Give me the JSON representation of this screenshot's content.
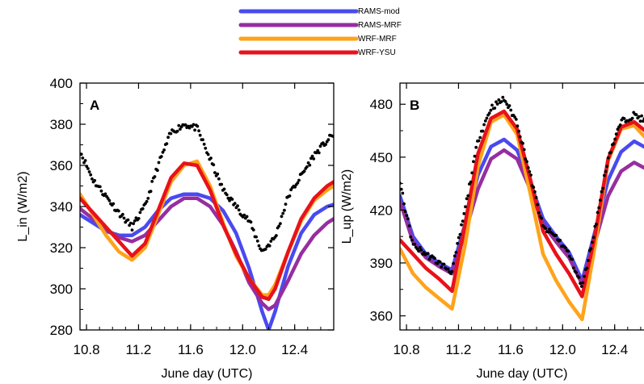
{
  "legend": [
    {
      "name": "RAMS-mod",
      "color": "#4a4af0"
    },
    {
      "name": "RAMS-MRF",
      "color": "#962ea0"
    },
    {
      "name": "WRF-MRF",
      "color": "#ffa31a"
    },
    {
      "name": "WRF-YSU",
      "color": "#e8121a"
    }
  ],
  "chart_data": [
    {
      "type": "line",
      "panel_label": "A",
      "xlabel": "June day (UTC)",
      "ylabel": "L_in (W/m2)",
      "xlim": [
        10.75,
        12.7
      ],
      "ylim": [
        280,
        400
      ],
      "xticks": [
        10.8,
        11.2,
        11.6,
        12.0,
        12.4
      ],
      "xtick_labels": [
        "10.8",
        "11.2",
        "11.6",
        "12.0",
        "12.4"
      ],
      "yticks": [
        280,
        300,
        320,
        340,
        360,
        380,
        400
      ],
      "ytick_labels": [
        "280",
        "300",
        "320",
        "340",
        "360",
        "380",
        "400"
      ],
      "observed": {
        "style": "black dots",
        "x": [
          10.75,
          10.85,
          10.95,
          11.05,
          11.15,
          11.25,
          11.35,
          11.45,
          11.55,
          11.65,
          11.75,
          11.85,
          11.95,
          12.05,
          12.15,
          12.25,
          12.35,
          12.45,
          12.55,
          12.65,
          12.7
        ],
        "y": [
          367,
          353,
          345,
          337,
          330,
          340,
          360,
          376,
          380,
          378,
          363,
          348,
          340,
          333,
          318,
          325,
          345,
          355,
          365,
          372,
          375
        ]
      },
      "series": [
        {
          "name": "RAMS-mod",
          "x": [
            10.75,
            10.85,
            10.95,
            11.05,
            11.15,
            11.25,
            11.35,
            11.45,
            11.55,
            11.65,
            11.75,
            11.85,
            11.95,
            12.05,
            12.15,
            12.2,
            12.25,
            12.35,
            12.45,
            12.55,
            12.65,
            12.7
          ],
          "y": [
            336,
            332,
            328,
            326,
            326,
            330,
            338,
            344,
            346,
            346,
            344,
            338,
            327,
            310,
            289,
            280,
            289,
            311,
            327,
            336,
            340,
            341
          ]
        },
        {
          "name": "RAMS-MRF",
          "x": [
            10.75,
            10.85,
            10.95,
            11.05,
            11.15,
            11.25,
            11.35,
            11.45,
            11.55,
            11.65,
            11.75,
            11.85,
            11.95,
            12.05,
            12.15,
            12.2,
            12.25,
            12.35,
            12.45,
            12.55,
            12.65,
            12.7
          ],
          "y": [
            339,
            334,
            329,
            325,
            323,
            326,
            333,
            340,
            344,
            344,
            340,
            331,
            318,
            303,
            293,
            290,
            292,
            304,
            317,
            326,
            332,
            334
          ]
        },
        {
          "name": "WRF-MRF",
          "x": [
            10.75,
            10.85,
            10.95,
            11.05,
            11.15,
            11.25,
            11.35,
            11.45,
            11.55,
            11.65,
            11.75,
            11.85,
            11.95,
            12.05,
            12.15,
            12.2,
            12.25,
            12.35,
            12.45,
            12.55,
            12.65,
            12.7
          ],
          "y": [
            346,
            336,
            326,
            318,
            314,
            320,
            336,
            352,
            360,
            362,
            350,
            332,
            316,
            305,
            297,
            297,
            302,
            318,
            333,
            343,
            348,
            350
          ]
        },
        {
          "name": "WRF-YSU",
          "x": [
            10.75,
            10.85,
            10.95,
            11.05,
            11.15,
            11.25,
            11.35,
            11.45,
            11.55,
            11.65,
            11.75,
            11.85,
            11.95,
            12.05,
            12.15,
            12.2,
            12.25,
            12.35,
            12.45,
            12.55,
            12.65,
            12.7
          ],
          "y": [
            344,
            337,
            330,
            323,
            316,
            322,
            338,
            354,
            361,
            360,
            348,
            331,
            317,
            305,
            296,
            295,
            300,
            318,
            334,
            344,
            350,
            352
          ]
        }
      ]
    },
    {
      "type": "line",
      "panel_label": "B",
      "xlabel": "June day (UTC)",
      "ylabel": "L_up (W/m2)",
      "xlim": [
        10.75,
        12.7
      ],
      "ylim": [
        352,
        492
      ],
      "xticks": [
        10.8,
        11.2,
        11.6,
        12.0,
        12.4
      ],
      "xtick_labels": [
        "10.8",
        "11.2",
        "11.6",
        "12.0",
        "12.4"
      ],
      "yticks": [
        360,
        390,
        420,
        450,
        480
      ],
      "ytick_labels": [
        "360",
        "390",
        "420",
        "450",
        "480"
      ],
      "observed": {
        "style": "black dots",
        "x": [
          10.75,
          10.85,
          10.95,
          11.05,
          11.15,
          11.25,
          11.35,
          11.45,
          11.55,
          11.65,
          11.75,
          11.85,
          11.95,
          12.05,
          12.15,
          12.25,
          12.35,
          12.45,
          12.55,
          12.65,
          12.7
        ],
        "y": [
          435,
          400,
          395,
          390,
          385,
          420,
          460,
          478,
          483,
          470,
          440,
          410,
          405,
          395,
          376,
          410,
          450,
          470,
          474,
          470,
          468
        ]
      },
      "series": [
        {
          "name": "RAMS-mod",
          "x": [
            10.75,
            10.85,
            10.95,
            11.05,
            11.15,
            11.25,
            11.35,
            11.45,
            11.55,
            11.65,
            11.75,
            11.85,
            11.95,
            12.05,
            12.15,
            12.25,
            12.35,
            12.45,
            12.55,
            12.65,
            12.7
          ],
          "y": [
            428,
            405,
            395,
            390,
            386,
            412,
            440,
            456,
            460,
            454,
            436,
            415,
            405,
            396,
            380,
            408,
            437,
            453,
            459,
            455,
            452
          ]
        },
        {
          "name": "RAMS-MRF",
          "x": [
            10.75,
            10.85,
            10.95,
            11.05,
            11.15,
            11.25,
            11.35,
            11.45,
            11.55,
            11.65,
            11.75,
            11.85,
            11.95,
            12.05,
            12.15,
            12.25,
            12.35,
            12.45,
            12.55,
            12.65,
            12.7
          ],
          "y": [
            425,
            402,
            393,
            388,
            384,
            407,
            432,
            449,
            454,
            449,
            432,
            412,
            402,
            393,
            378,
            402,
            428,
            442,
            447,
            443,
            441
          ]
        },
        {
          "name": "WRF-MRF",
          "x": [
            10.75,
            10.85,
            10.95,
            11.05,
            11.15,
            11.25,
            11.35,
            11.45,
            11.55,
            11.65,
            11.75,
            11.85,
            11.95,
            12.05,
            12.15,
            12.25,
            12.35,
            12.45,
            12.55,
            12.65,
            12.7
          ],
          "y": [
            398,
            384,
            376,
            370,
            364,
            400,
            445,
            470,
            474,
            463,
            430,
            395,
            380,
            368,
            358,
            400,
            448,
            466,
            468,
            460,
            456
          ]
        },
        {
          "name": "WRF-YSU",
          "x": [
            10.75,
            10.85,
            10.95,
            11.05,
            11.15,
            11.25,
            11.35,
            11.45,
            11.55,
            11.65,
            11.75,
            11.85,
            11.95,
            12.05,
            12.15,
            12.25,
            12.35,
            12.45,
            12.55,
            12.65,
            12.7
          ],
          "y": [
            403,
            395,
            387,
            381,
            374,
            412,
            452,
            472,
            476,
            466,
            438,
            408,
            395,
            384,
            371,
            406,
            449,
            467,
            470,
            464,
            461
          ]
        }
      ]
    }
  ]
}
